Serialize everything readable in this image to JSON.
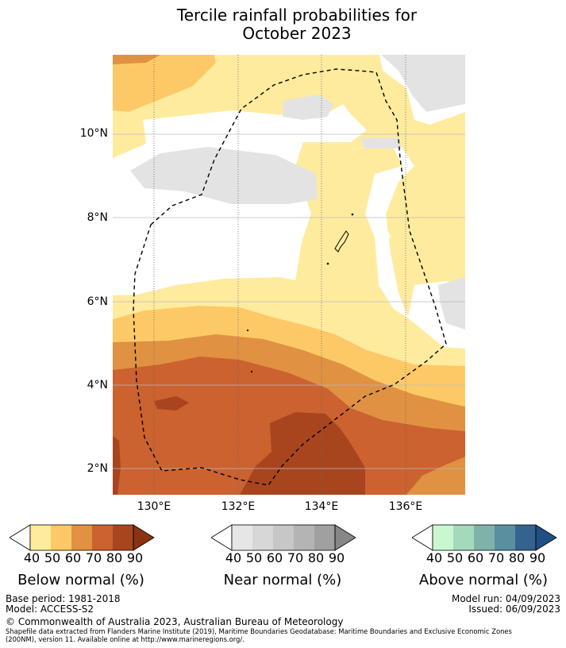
{
  "title_line1": "Tercile rainfall probabilities for",
  "title_line2": "October 2023",
  "map": {
    "lat_labels": [
      "10°N",
      "8°N",
      "6°N",
      "4°N",
      "2°N"
    ],
    "lon_labels": [
      "130°E",
      "132°E",
      "134°E",
      "136°E"
    ]
  },
  "legends": [
    {
      "caption": "Below normal (%)",
      "ticks": [
        "40",
        "50",
        "60",
        "70",
        "80",
        "90"
      ],
      "colors": [
        "#ffffff",
        "#ffeb9e",
        "#fdc966",
        "#e09142",
        "#cb622f",
        "#a8451f",
        "#8a3212"
      ]
    },
    {
      "caption": "Near normal (%)",
      "ticks": [
        "40",
        "50",
        "60",
        "70",
        "80",
        "90"
      ],
      "colors": [
        "#ffffff",
        "#e6e6e6",
        "#d7d7d7",
        "#c7c7c7",
        "#b4b4b4",
        "#a0a0a0",
        "#878787"
      ]
    },
    {
      "caption": "Above normal (%)",
      "ticks": [
        "40",
        "50",
        "60",
        "70",
        "80",
        "90"
      ],
      "colors": [
        "#ffffff",
        "#c8f7d0",
        "#a5d9bc",
        "#7fb3aa",
        "#5a8fa0",
        "#33638e",
        "#1f4f83"
      ]
    }
  ],
  "footer": {
    "base_period": "Base period: 1981-2018",
    "model": "Model: ACCESS-S2",
    "model_run": "Model run: 04/09/2023",
    "issued": "Issued: 06/09/2023",
    "copyright": "© Commonwealth of Australia 2023, Australian Bureau of Meteorology",
    "shapefile_line1": "Shapefile data extracted from Flanders Marine Institute (2019), Maritime Boundaries Geodatabase: Maritime Boundaries and Exclusive Economic Zones",
    "shapefile_line2": "(200NM), version 11. Available online at http://www.marineregions.org/."
  }
}
